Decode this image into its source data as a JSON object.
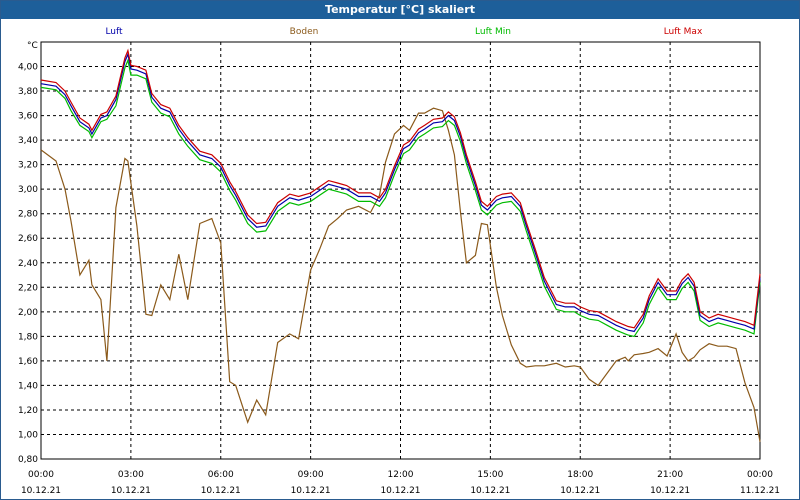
{
  "window": {
    "title": "Temperatur [°C] skaliert"
  },
  "chart_data": {
    "type": "line",
    "title": "Temperatur [°C] skaliert",
    "ylabel": "°C",
    "xlabel": "",
    "grid": true,
    "legend": "top",
    "ylim": [
      0.8,
      4.2
    ],
    "xlim": [
      0,
      24
    ],
    "y_ticks": [
      "4,00",
      "3,80",
      "3,60",
      "3,40",
      "3,20",
      "3,00",
      "2,80",
      "2,60",
      "2,40",
      "2,20",
      "2,00",
      "1,80",
      "1,60",
      "1,40",
      "1,20",
      "1,00",
      "0,80"
    ],
    "y_tick_values": [
      4.0,
      3.8,
      3.6,
      3.4,
      3.2,
      3.0,
      2.8,
      2.6,
      2.4,
      2.2,
      2.0,
      1.8,
      1.6,
      1.4,
      1.2,
      1.0,
      0.8
    ],
    "x_ticks": [
      {
        "time": "00:00",
        "date": "10.12.21",
        "x": 0
      },
      {
        "time": "03:00",
        "date": "10.12.21",
        "x": 3
      },
      {
        "time": "06:00",
        "date": "10.12.21",
        "x": 6
      },
      {
        "time": "09:00",
        "date": "10.12.21",
        "x": 9
      },
      {
        "time": "12:00",
        "date": "10.12.21",
        "x": 12
      },
      {
        "time": "15:00",
        "date": "10.12.21",
        "x": 15
      },
      {
        "time": "18:00",
        "date": "10.12.21",
        "x": 18
      },
      {
        "time": "21:00",
        "date": "10.12.21",
        "x": 21
      },
      {
        "time": "00:00",
        "date": "11.12.21",
        "x": 24
      }
    ],
    "luft_x": [
      0,
      0.5,
      0.8,
      1,
      1.3,
      1.6,
      1.7,
      2.0,
      2.2,
      2.5,
      2.8,
      2.9,
      3.0,
      3.2,
      3.5,
      3.7,
      4.0,
      4.3,
      4.6,
      4.9,
      5.3,
      5.7,
      6.0,
      6.3,
      6.5,
      6.9,
      7.2,
      7.5,
      7.9,
      8.3,
      8.6,
      9.0,
      9.3,
      9.6,
      9.9,
      10.2,
      10.6,
      11.0,
      11.3,
      11.5,
      11.8,
      12.1,
      12.3,
      12.6,
      12.8,
      13.1,
      13.4,
      13.6,
      13.8,
      14.0,
      14.2,
      14.5,
      14.7,
      14.9,
      15.2,
      15.4,
      15.7,
      16.0,
      16.2,
      16.5,
      16.8,
      17.2,
      17.5,
      17.8,
      18.0,
      18.3,
      18.6,
      18.9,
      19.2,
      19.5,
      19.6,
      19.8,
      20.1,
      20.3,
      20.6,
      20.9,
      21.2,
      21.4,
      21.6,
      21.8,
      22.0,
      22.3,
      22.6,
      22.9,
      23.2,
      23.5,
      23.8,
      24.0
    ],
    "series": [
      {
        "name": "Luft",
        "color": "#0000aa",
        "values": [
          3.86,
          3.84,
          3.77,
          3.68,
          3.55,
          3.5,
          3.45,
          3.58,
          3.6,
          3.73,
          4.04,
          4.1,
          3.98,
          3.97,
          3.94,
          3.75,
          3.66,
          3.63,
          3.49,
          3.39,
          3.28,
          3.25,
          3.18,
          3.03,
          2.95,
          2.76,
          2.69,
          2.7,
          2.86,
          2.93,
          2.91,
          2.94,
          2.99,
          3.04,
          3.02,
          3.0,
          2.94,
          2.94,
          2.9,
          2.97,
          3.16,
          3.33,
          3.36,
          3.46,
          3.49,
          3.54,
          3.55,
          3.6,
          3.56,
          3.43,
          3.25,
          3.03,
          2.87,
          2.83,
          2.91,
          2.93,
          2.94,
          2.86,
          2.7,
          2.48,
          2.25,
          2.06,
          2.04,
          2.04,
          2.01,
          1.98,
          1.97,
          1.93,
          1.89,
          1.86,
          1.85,
          1.84,
          1.95,
          2.1,
          2.24,
          2.14,
          2.14,
          2.23,
          2.28,
          2.21,
          1.97,
          1.92,
          1.95,
          1.93,
          1.91,
          1.89,
          1.86,
          2.28
        ]
      },
      {
        "name": "Boden",
        "color": "#8b5a1b",
        "values": [
          3.32,
          3.23,
          3.0,
          2.74,
          2.3,
          2.42,
          2.22,
          2.1,
          1.6,
          2.85,
          3.25,
          3.23,
          3.05,
          2.7,
          1.98,
          1.97,
          2.22,
          2.1,
          2.47,
          2.1,
          2.72,
          2.76,
          2.56,
          1.43,
          1.4,
          1.1,
          1.28,
          1.16,
          1.75,
          1.82,
          1.78,
          2.34,
          2.51,
          2.7,
          2.76,
          2.83,
          2.86,
          2.81,
          2.95,
          3.22,
          3.45,
          3.52,
          3.48,
          3.62,
          3.62,
          3.66,
          3.64,
          3.48,
          3.28,
          2.82,
          2.4,
          2.46,
          2.72,
          2.71,
          2.2,
          1.97,
          1.73,
          1.58,
          1.55,
          1.56,
          1.56,
          1.58,
          1.55,
          1.56,
          1.55,
          1.45,
          1.4,
          1.5,
          1.6,
          1.63,
          1.6,
          1.65,
          1.66,
          1.67,
          1.7,
          1.64,
          1.82,
          1.67,
          1.6,
          1.63,
          1.69,
          1.74,
          1.72,
          1.72,
          1.7,
          1.42,
          1.22,
          0.94
        ]
      },
      {
        "name": "Luft Min",
        "color": "#00bb00",
        "values": [
          3.83,
          3.81,
          3.74,
          3.64,
          3.52,
          3.47,
          3.42,
          3.55,
          3.57,
          3.68,
          3.99,
          4.05,
          3.93,
          3.93,
          3.9,
          3.71,
          3.62,
          3.59,
          3.45,
          3.35,
          3.24,
          3.21,
          3.14,
          2.99,
          2.91,
          2.72,
          2.65,
          2.66,
          2.82,
          2.89,
          2.87,
          2.9,
          2.95,
          3.0,
          2.98,
          2.96,
          2.9,
          2.9,
          2.86,
          2.93,
          3.12,
          3.29,
          3.32,
          3.42,
          3.45,
          3.5,
          3.51,
          3.56,
          3.52,
          3.39,
          3.21,
          2.99,
          2.83,
          2.79,
          2.87,
          2.89,
          2.9,
          2.82,
          2.66,
          2.44,
          2.21,
          2.02,
          2.0,
          2.0,
          1.97,
          1.94,
          1.93,
          1.89,
          1.85,
          1.82,
          1.81,
          1.8,
          1.91,
          2.06,
          2.2,
          2.1,
          2.1,
          2.19,
          2.24,
          2.17,
          1.93,
          1.88,
          1.91,
          1.89,
          1.87,
          1.85,
          1.82,
          2.24
        ]
      },
      {
        "name": "Luft Max",
        "color": "#cc0000",
        "values": [
          3.89,
          3.87,
          3.8,
          3.71,
          3.58,
          3.53,
          3.48,
          3.61,
          3.63,
          3.76,
          4.07,
          4.13,
          4.01,
          4.0,
          3.97,
          3.78,
          3.69,
          3.66,
          3.52,
          3.42,
          3.31,
          3.28,
          3.21,
          3.06,
          2.98,
          2.79,
          2.72,
          2.73,
          2.89,
          2.96,
          2.94,
          2.97,
          3.02,
          3.07,
          3.05,
          3.03,
          2.97,
          2.97,
          2.93,
          3.0,
          3.19,
          3.36,
          3.39,
          3.49,
          3.52,
          3.57,
          3.58,
          3.63,
          3.59,
          3.46,
          3.28,
          3.06,
          2.9,
          2.86,
          2.94,
          2.96,
          2.97,
          2.89,
          2.73,
          2.51,
          2.28,
          2.09,
          2.07,
          2.07,
          2.04,
          2.01,
          2.0,
          1.96,
          1.92,
          1.89,
          1.88,
          1.87,
          1.98,
          2.13,
          2.27,
          2.17,
          2.17,
          2.26,
          2.31,
          2.24,
          2.0,
          1.95,
          1.98,
          1.96,
          1.94,
          1.92,
          1.89,
          2.31
        ]
      }
    ]
  }
}
